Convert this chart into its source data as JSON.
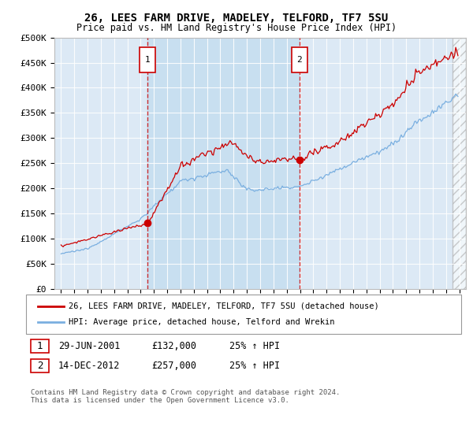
{
  "title": "26, LEES FARM DRIVE, MADELEY, TELFORD, TF7 5SU",
  "subtitle": "Price paid vs. HM Land Registry's House Price Index (HPI)",
  "ylabel_ticks": [
    "£0",
    "£50K",
    "£100K",
    "£150K",
    "£200K",
    "£250K",
    "£300K",
    "£350K",
    "£400K",
    "£450K",
    "£500K"
  ],
  "ytick_values": [
    0,
    50000,
    100000,
    150000,
    200000,
    250000,
    300000,
    350000,
    400000,
    450000,
    500000
  ],
  "xlim": [
    1994.5,
    2025.5
  ],
  "ylim": [
    0,
    500000
  ],
  "plot_bg_color": "#dce9f5",
  "shade_bg_color": "#c8dff0",
  "fig_bg_color": "#ffffff",
  "red_line_color": "#cc0000",
  "blue_line_color": "#7aafe0",
  "sale1_x": 2001.5,
  "sale1_y": 132000,
  "sale1_label": "29-JUN-2001",
  "sale1_price": "£132,000",
  "sale1_hpi": "25% ↑ HPI",
  "sale2_x": 2012.96,
  "sale2_y": 257000,
  "sale2_label": "14-DEC-2012",
  "sale2_price": "£257,000",
  "sale2_hpi": "25% ↑ HPI",
  "legend_line1": "26, LEES FARM DRIVE, MADELEY, TELFORD, TF7 5SU (detached house)",
  "legend_line2": "HPI: Average price, detached house, Telford and Wrekin",
  "footnote": "Contains HM Land Registry data © Crown copyright and database right 2024.\nThis data is licensed under the Open Government Licence v3.0."
}
